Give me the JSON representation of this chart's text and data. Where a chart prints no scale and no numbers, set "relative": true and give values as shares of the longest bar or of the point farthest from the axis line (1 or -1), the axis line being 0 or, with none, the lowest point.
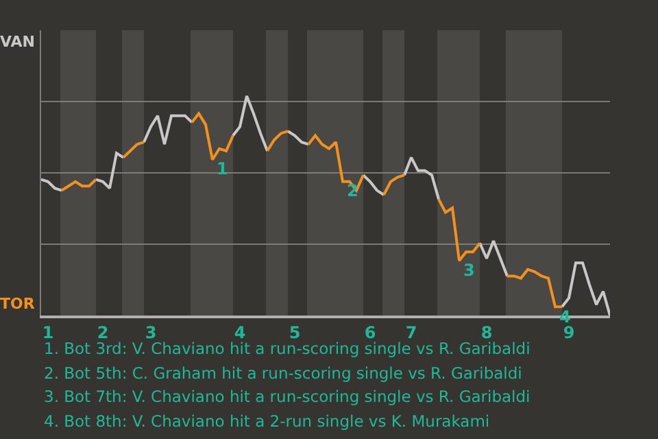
{
  "chart_data": {
    "type": "line",
    "relative": true,
    "categories": [
      null,
      "1",
      null,
      null,
      null,
      null,
      null,
      null,
      null,
      "2",
      null,
      null,
      null,
      null,
      null,
      null,
      "3",
      null,
      null,
      null,
      null,
      null,
      null,
      null,
      null,
      null,
      null,
      null,
      null,
      "4",
      null,
      null,
      null,
      null,
      null,
      null,
      null,
      "5",
      null,
      null,
      null,
      null,
      null,
      null,
      null,
      null,
      null,
      null,
      "6",
      null,
      null,
      null,
      null,
      null,
      "7",
      null,
      null,
      null,
      null,
      null,
      null,
      null,
      null,
      null,
      null,
      "8",
      null,
      null,
      null,
      null,
      null,
      null,
      null,
      null,
      null,
      null,
      null,
      "9",
      null,
      null,
      null,
      null,
      null,
      null
    ],
    "series": [
      {
        "color": "#c8c8c8",
        "values": [
          0.62,
          0.61,
          0.58,
          0.57,
          null,
          null,
          null,
          null,
          0.62,
          0.61,
          0.58,
          0.74,
          0.72,
          null,
          null,
          0.79,
          0.86,
          0.91,
          0.78,
          0.91,
          0.91,
          0.91,
          0.88,
          null,
          null,
          null,
          null,
          null,
          0.82,
          0.86,
          1,
          0.92,
          0.83,
          0.75,
          null,
          null,
          0.84,
          0.82,
          0.79,
          0.78,
          null,
          null,
          null,
          null,
          null,
          null,
          null,
          0.64,
          0.61,
          0.57,
          0.55,
          null,
          null,
          0.64,
          0.72,
          0.66,
          0.66,
          0.64,
          0.53,
          null,
          null,
          null,
          null,
          null,
          0.33,
          0.26,
          0.34,
          0.26,
          0.18,
          null,
          null,
          null,
          null,
          null,
          null,
          null,
          0.04,
          0.08,
          0.24,
          0.24,
          0.14,
          0.05,
          0.11,
          0
        ]
      },
      {
        "color": "#f39120",
        "values": [
          null,
          null,
          null,
          0.57,
          0.59,
          0.61,
          0.59,
          0.59,
          0.62,
          null,
          null,
          null,
          0.72,
          0.75,
          0.78,
          0.79,
          null,
          null,
          null,
          null,
          null,
          null,
          0.88,
          0.92,
          0.87,
          0.71,
          0.76,
          0.75,
          0.82,
          null,
          null,
          null,
          null,
          0.75,
          0.8,
          0.83,
          0.84,
          null,
          null,
          0.78,
          0.82,
          0.78,
          0.76,
          0.79,
          0.61,
          0.61,
          0.57,
          0.64,
          null,
          null,
          0.55,
          0.61,
          0.63,
          0.64,
          null,
          null,
          null,
          null,
          0.53,
          0.47,
          0.49,
          0.25,
          0.29,
          0.29,
          0.33,
          null,
          null,
          null,
          0.18,
          0.18,
          0.17,
          0.21,
          0.2,
          0.18,
          0.17,
          0.04,
          0.04,
          null,
          null,
          null,
          null,
          null,
          null,
          null
        ]
      }
    ],
    "grid": "y",
    "annotations": [
      "VAN",
      "TOR",
      "1",
      "2",
      "3",
      "4",
      "1. Bot 3rd: V. Chaviano hit a run-scoring single vs R. Garibaldi",
      "2. Bot 5th: C. Graham hit a run-scoring single vs R. Garibaldi",
      "3. Bot 7th: V. Chaviano hit a run-scoring single vs R. Garibaldi",
      "4. Bot 8th: V. Chaviano hit a 2-run single vs K. Murakami"
    ]
  }
}
